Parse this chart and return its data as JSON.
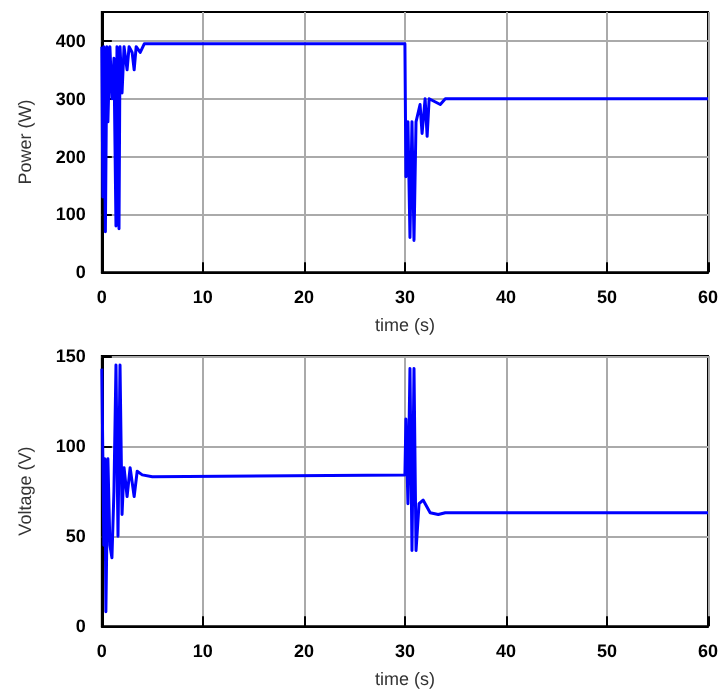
{
  "chart_data": [
    {
      "type": "line",
      "xlabel": "time (s)",
      "ylabel": "Power (W)",
      "xlim": [
        0,
        60
      ],
      "xticks": [
        0,
        10,
        20,
        30,
        40,
        50,
        60
      ],
      "ylim": [
        0,
        450
      ],
      "yticks": [
        0,
        100,
        200,
        300,
        400
      ],
      "grid": true,
      "series": [
        {
          "color": "#0000ff",
          "x": [
            0,
            0.1,
            0.2,
            0.35,
            0.5,
            0.6,
            0.8,
            1.0,
            1.2,
            1.4,
            1.5,
            1.7,
            1.8,
            2.0,
            2.2,
            2.5,
            2.7,
            3.0,
            3.2,
            3.4,
            3.8,
            4.2,
            30,
            30.1,
            30.3,
            30.5,
            30.7,
            30.9,
            31.1,
            31.5,
            31.7,
            32,
            32.2,
            32.4,
            33.5,
            34,
            60
          ],
          "values": [
            390,
            130,
            390,
            70,
            390,
            260,
            390,
            300,
            370,
            80,
            390,
            75,
            390,
            310,
            390,
            350,
            390,
            380,
            350,
            390,
            380,
            395,
            395,
            165,
            260,
            60,
            260,
            55,
            260,
            290,
            240,
            300,
            235,
            300,
            290,
            300,
            300
          ]
        }
      ]
    },
    {
      "type": "line",
      "xlabel": "time (s)",
      "ylabel": "Voltage (V)",
      "xlim": [
        0,
        60
      ],
      "xticks": [
        0,
        10,
        20,
        30,
        40,
        50,
        60
      ],
      "ylim": [
        0,
        150
      ],
      "yticks": [
        0,
        50,
        100,
        150
      ],
      "grid": true,
      "series": [
        {
          "color": "#0000ff",
          "x": [
            0,
            0.2,
            0.3,
            0.4,
            0.6,
            0.8,
            1.0,
            1.2,
            1.4,
            1.6,
            1.8,
            2.0,
            2.2,
            2.5,
            2.8,
            3.2,
            3.5,
            4,
            5,
            30,
            30.1,
            30.3,
            30.5,
            30.7,
            30.9,
            31.1,
            31.4,
            31.8,
            32.5,
            33.3,
            34,
            60
          ],
          "values": [
            143,
            45,
            93,
            8,
            93,
            45,
            38,
            75,
            145,
            50,
            145,
            62,
            88,
            72,
            88,
            72,
            86,
            84,
            83,
            84,
            115,
            68,
            143,
            42,
            143,
            42,
            68,
            70,
            63,
            62,
            63,
            63
          ]
        }
      ]
    }
  ]
}
